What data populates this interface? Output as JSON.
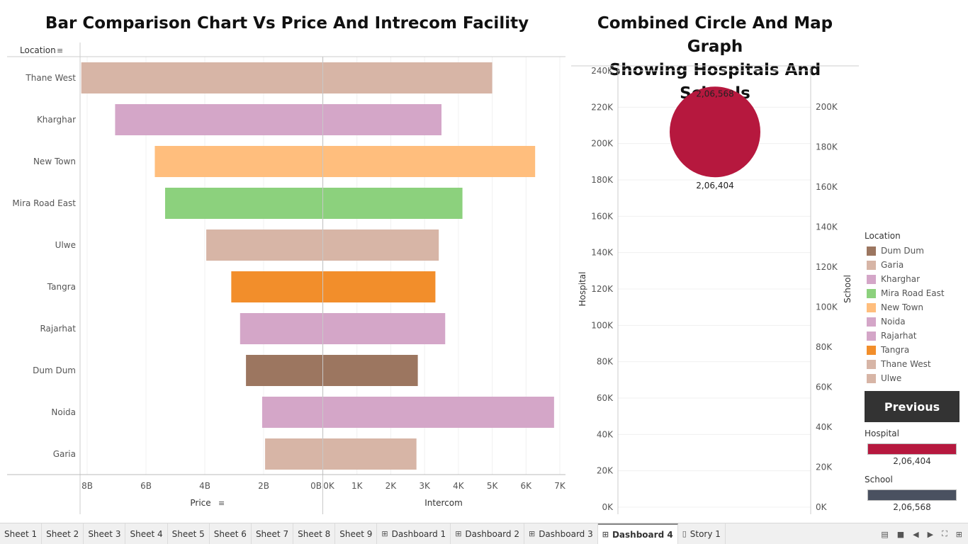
{
  "left_title": "Bar Comparison Chart Vs Price And Intrecom Facility",
  "right_title_line1": "Combined Circle And Map Graph",
  "right_title_line2": "Showing Hospitals And Schools",
  "colors": {
    "Dum Dum": "#9C7660",
    "Garia": "#D7B5A6",
    "Kharghar": "#D4A6C8",
    "Mira Road East": "#8CD17D",
    "New Town": "#FFBE7D",
    "Noida": "#D4A6C8",
    "Rajarhat": "#D4A6C8",
    "Tangra": "#F28E2B",
    "Thane West": "#D7B5A6",
    "Ulwe": "#D7B5A6",
    "hospital_circle": "#B6183E",
    "school_bar": "#4A5160",
    "button_bg": "#333333"
  },
  "chart_data": [
    {
      "type": "bar",
      "orientation": "horizontal",
      "title": "Bar Comparison Chart Vs Price And Intrecom Facility",
      "row_header": "Location",
      "categories": [
        "Thane West",
        "Kharghar",
        "New Town",
        "Mira Road East",
        "Ulwe",
        "Tangra",
        "Rajarhat",
        "Dum Dum",
        "Noida",
        "Garia"
      ],
      "panes": [
        {
          "name": "Price",
          "xlabel": "Price",
          "direction": "reversed",
          "xlim": [
            0,
            8.5
          ],
          "ticks": [
            8,
            6,
            4,
            2,
            0
          ],
          "tick_labels": [
            "8B",
            "6B",
            "4B",
            "2B",
            "0B"
          ],
          "values": [
            8.2,
            7.05,
            5.7,
            5.35,
            3.95,
            3.1,
            2.8,
            2.6,
            2.05,
            1.95
          ]
        },
        {
          "name": "Intercom",
          "xlabel": "Intercom",
          "xlim": [
            0,
            7000
          ],
          "ticks": [
            0,
            1000,
            2000,
            3000,
            4000,
            5000,
            6000,
            7000
          ],
          "tick_labels": [
            "0K",
            "1K",
            "2K",
            "3K",
            "4K",
            "5K",
            "6K",
            "7K"
          ],
          "values": [
            5000,
            3500,
            6270,
            4120,
            3420,
            3320,
            3610,
            2800,
            6830,
            2760
          ]
        }
      ]
    },
    {
      "type": "scatter",
      "title": "Combined Circle And Map Graph Showing Hospitals And Schools",
      "y_left_label": "Hospital",
      "y_left_lim": [
        0,
        240000
      ],
      "y_left_ticks": [
        0,
        20000,
        40000,
        60000,
        80000,
        100000,
        120000,
        140000,
        160000,
        180000,
        200000,
        220000,
        240000
      ],
      "y_left_tick_labels": [
        "0K",
        "20K",
        "40K",
        "60K",
        "80K",
        "100K",
        "120K",
        "140K",
        "160K",
        "180K",
        "200K",
        "220K",
        "240K"
      ],
      "y_right_label": "School",
      "y_right_lim": [
        0,
        218000
      ],
      "y_right_ticks": [
        0,
        20000,
        40000,
        60000,
        80000,
        100000,
        120000,
        140000,
        160000,
        180000,
        200000
      ],
      "y_right_tick_labels": [
        "0K",
        "20K",
        "40K",
        "60K",
        "80K",
        "100K",
        "120K",
        "140K",
        "160K",
        "180K",
        "200K"
      ],
      "points": [
        {
          "hospital": 206404,
          "school": 206568,
          "hospital_label": "2,06,404",
          "school_label": "2,06,568"
        }
      ]
    }
  ],
  "legend": {
    "title": "Location",
    "items": [
      "Dum Dum",
      "Garia",
      "Kharghar",
      "Mira Road East",
      "New Town",
      "Noida",
      "Rajarhat",
      "Tangra",
      "Thane West",
      "Ulwe"
    ]
  },
  "previous_button": "Previous",
  "hospital_legend": {
    "title": "Hospital",
    "value": "2,06,404"
  },
  "school_legend": {
    "title": "School",
    "value": "2,06,568"
  },
  "tabs": [
    {
      "label": "Sheet 1",
      "icon": "",
      "active": false
    },
    {
      "label": "Sheet 2",
      "icon": "",
      "active": false
    },
    {
      "label": "Sheet 3",
      "icon": "",
      "active": false
    },
    {
      "label": "Sheet 4",
      "icon": "",
      "active": false
    },
    {
      "label": "Sheet 5",
      "icon": "",
      "active": false
    },
    {
      "label": "Sheet 6",
      "icon": "",
      "active": false
    },
    {
      "label": "Sheet 7",
      "icon": "",
      "active": false
    },
    {
      "label": "Sheet 8",
      "icon": "",
      "active": false
    },
    {
      "label": "Sheet 9",
      "icon": "",
      "active": false
    },
    {
      "label": "Dashboard 1",
      "icon": "dashboard-icon",
      "active": false
    },
    {
      "label": "Dashboard 2",
      "icon": "dashboard-icon",
      "active": false
    },
    {
      "label": "Dashboard 3",
      "icon": "dashboard-icon",
      "active": false
    },
    {
      "label": "Dashboard 4",
      "icon": "dashboard-icon",
      "active": true
    },
    {
      "label": "Story 1",
      "icon": "story-icon",
      "active": false
    }
  ]
}
